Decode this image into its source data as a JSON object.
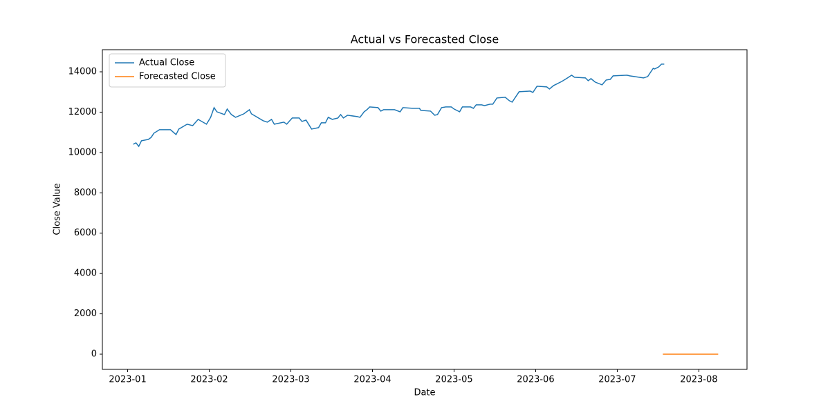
{
  "chart_data": {
    "type": "line",
    "title": "Actual vs Forecasted Close",
    "xlabel": "Date",
    "ylabel": "Close Value",
    "xlim": [
      0.69,
      8.59
    ],
    "ylim": [
      -753,
      15096
    ],
    "xticks": [
      {
        "value": 1,
        "label": "2023-01"
      },
      {
        "value": 2,
        "label": "2023-02"
      },
      {
        "value": 3,
        "label": "2023-03"
      },
      {
        "value": 4,
        "label": "2023-04"
      },
      {
        "value": 5,
        "label": "2023-05"
      },
      {
        "value": 6,
        "label": "2023-06"
      },
      {
        "value": 7,
        "label": "2023-07"
      },
      {
        "value": 8,
        "label": "2023-08"
      }
    ],
    "yticks": [
      0,
      2000,
      4000,
      6000,
      8000,
      10000,
      12000,
      14000
    ],
    "legend": "upper left",
    "series": [
      {
        "name": "Actual Close",
        "color": "#1f77b4",
        "x": [
          1.068,
          1.102,
          1.136,
          1.169,
          1.254,
          1.288,
          1.322,
          1.39,
          1.525,
          1.593,
          1.627,
          1.729,
          1.797,
          1.864,
          1.966,
          2.017,
          2.059,
          2.093,
          2.186,
          2.22,
          2.271,
          2.322,
          2.424,
          2.492,
          2.517,
          2.661,
          2.712,
          2.763,
          2.797,
          2.915,
          2.949,
          3.017,
          3.102,
          3.136,
          3.186,
          3.254,
          3.339,
          3.373,
          3.424,
          3.458,
          3.508,
          3.576,
          3.61,
          3.644,
          3.695,
          3.814,
          3.847,
          3.898,
          3.932,
          3.966,
          4.068,
          4.102,
          4.136,
          4.271,
          4.339,
          4.373,
          4.492,
          4.576,
          4.593,
          4.712,
          4.763,
          4.797,
          4.847,
          4.898,
          4.966,
          5.0,
          5.068,
          5.102,
          5.203,
          5.237,
          5.271,
          5.339,
          5.373,
          5.441,
          5.475,
          5.525,
          5.627,
          5.678,
          5.712,
          5.797,
          5.932,
          5.966,
          6.017,
          6.136,
          6.169,
          6.22,
          6.322,
          6.39,
          6.441,
          6.475,
          6.61,
          6.644,
          6.678,
          6.729,
          6.814,
          6.864,
          6.915,
          6.949,
          7.119,
          7.153,
          7.322,
          7.373,
          7.407,
          7.441,
          7.458,
          7.508,
          7.542,
          7.576
        ],
        "values": [
          10409,
          10477,
          10306,
          10580,
          10649,
          10751,
          10957,
          11128,
          11128,
          10888,
          11162,
          11402,
          11333,
          11642,
          11402,
          11744,
          12224,
          12018,
          11881,
          12155,
          11881,
          11744,
          11916,
          12121,
          11916,
          11573,
          11505,
          11642,
          11402,
          11505,
          11402,
          11710,
          11710,
          11539,
          11607,
          11162,
          11231,
          11470,
          11470,
          11744,
          11642,
          11710,
          11881,
          11710,
          11847,
          11779,
          11744,
          12018,
          12121,
          12258,
          12224,
          12052,
          12121,
          12121,
          12018,
          12224,
          12189,
          12189,
          12087,
          12052,
          11847,
          11881,
          12224,
          12258,
          12258,
          12155,
          12018,
          12258,
          12258,
          12189,
          12361,
          12361,
          12326,
          12395,
          12395,
          12703,
          12737,
          12566,
          12498,
          13011,
          13045,
          12977,
          13285,
          13251,
          13148,
          13319,
          13525,
          13696,
          13833,
          13730,
          13696,
          13559,
          13662,
          13491,
          13354,
          13593,
          13628,
          13799,
          13833,
          13799,
          13696,
          13764,
          13970,
          14175,
          14141,
          14244,
          14381,
          14381
        ]
      },
      {
        "name": "Forecasted Close",
        "color": "#ff7f0e",
        "x": [
          7.559,
          7.729,
          7.898,
          8.068,
          8.237
        ],
        "values": [
          0,
          0,
          0,
          0,
          0
        ]
      }
    ]
  }
}
